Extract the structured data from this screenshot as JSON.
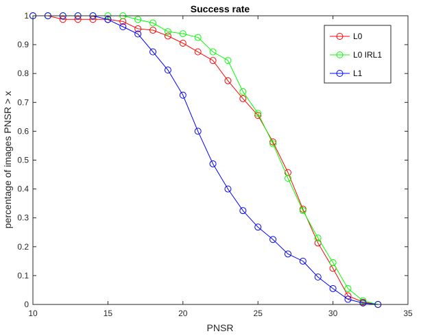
{
  "chart_data": {
    "type": "line",
    "title": "Success rate",
    "xlabel": "PNSR",
    "ylabel": "percentage of images PNSR > x",
    "xlim": [
      10,
      35
    ],
    "ylim": [
      0,
      1
    ],
    "xticks": [
      10,
      15,
      20,
      25,
      30,
      35
    ],
    "yticks": [
      0,
      0.1,
      0.2,
      0.3,
      0.4,
      0.5,
      0.6,
      0.7,
      0.8,
      0.9,
      1
    ],
    "grid": false,
    "legend_position": "top-right",
    "marker": "circle",
    "x": [
      10,
      11,
      12,
      13,
      14,
      15,
      16,
      17,
      18,
      19,
      20,
      21,
      22,
      23,
      24,
      25,
      26,
      27,
      28,
      29,
      30,
      31,
      32,
      33
    ],
    "series": [
      {
        "name": "L0",
        "color": "#ff0000",
        "values": [
          1.0,
          1.0,
          0.9875,
          0.9875,
          0.9875,
          0.9875,
          0.98,
          0.955,
          0.95,
          0.93,
          0.905,
          0.875,
          0.845,
          0.775,
          0.713,
          0.655,
          0.563,
          0.457,
          0.33,
          0.213,
          0.125,
          0.03,
          0.008,
          0.0
        ]
      },
      {
        "name": "L0 IRL1",
        "color": "#00ff00",
        "values": [
          1.0,
          1.0,
          1.0,
          1.0,
          1.0,
          1.0,
          1.0,
          0.987,
          0.975,
          0.945,
          0.938,
          0.925,
          0.875,
          0.845,
          0.737,
          0.662,
          0.557,
          0.437,
          0.325,
          0.23,
          0.145,
          0.055,
          0.013,
          0.0
        ]
      },
      {
        "name": "L1",
        "color": "#0000ff",
        "values": [
          1.0,
          1.0,
          1.0,
          1.0,
          1.0,
          0.987,
          0.962,
          0.937,
          0.875,
          0.812,
          0.725,
          0.6,
          0.487,
          0.4,
          0.325,
          0.268,
          0.225,
          0.175,
          0.15,
          0.095,
          0.055,
          0.018,
          0.005,
          0.0
        ]
      }
    ]
  }
}
